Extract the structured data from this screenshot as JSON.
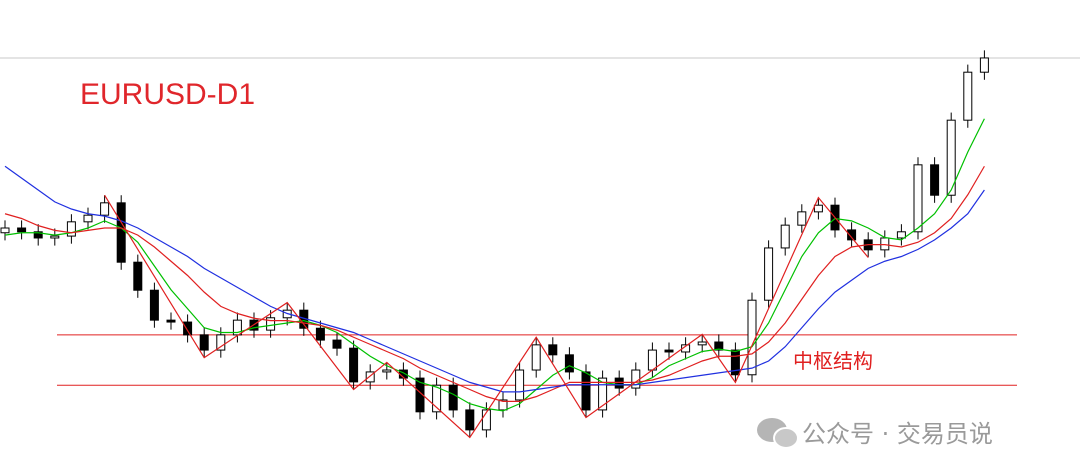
{
  "chart_data": {
    "type": "candlestick",
    "title": "EURUSD-D1",
    "annotation": "中枢结构",
    "watermark": "公众号 · 交易员说",
    "ylim": [
      0,
      100
    ],
    "up_color": "#ffffff",
    "down_color": "#000000",
    "outline_color": "#000000",
    "open": [
      51.0,
      52.0,
      51.2,
      49.9,
      50.3,
      53.3,
      54.7,
      57.3,
      44.8,
      38.9,
      32.6,
      32.2,
      29.5,
      26.3,
      29.5,
      32.6,
      30.5,
      33.1,
      34.7,
      30.9,
      28.4,
      26.7,
      19.6,
      21.7,
      22.1,
      20.4,
      13.3,
      18.9,
      13.7,
      9.5,
      13.7,
      15.8,
      22.1,
      27.4,
      25.3,
      21.7,
      13.7,
      20.4,
      18.3,
      22.1,
      26.3,
      25.9,
      27.4,
      28.0,
      26.3,
      21.1,
      36.8,
      47.8,
      52.6,
      55.4,
      56.8,
      51.6,
      49.5,
      47.4,
      49.9,
      51.2,
      65.3,
      58.9,
      74.7,
      84.8
    ],
    "high": [
      53.6,
      53.6,
      52.8,
      51.9,
      54.9,
      56.3,
      58.9,
      58.9,
      46.4,
      40.5,
      34.2,
      33.8,
      31.1,
      31.1,
      34.2,
      34.2,
      34.7,
      36.3,
      36.3,
      32.5,
      30.0,
      28.3,
      23.3,
      23.7,
      23.7,
      22.0,
      20.5,
      20.5,
      15.3,
      15.3,
      17.4,
      23.7,
      29.0,
      29.0,
      26.9,
      23.3,
      22.0,
      22.0,
      23.7,
      27.9,
      27.9,
      29.0,
      29.6,
      29.6,
      27.9,
      38.4,
      49.4,
      54.2,
      57.0,
      58.4,
      58.4,
      53.2,
      51.1,
      51.5,
      52.8,
      66.9,
      66.9,
      76.3,
      86.4,
      89.4
    ],
    "low": [
      49.4,
      49.6,
      48.3,
      48.3,
      48.7,
      51.7,
      53.1,
      43.2,
      37.3,
      31.0,
      30.6,
      27.9,
      24.7,
      24.7,
      27.9,
      28.9,
      28.9,
      31.5,
      29.3,
      26.8,
      25.1,
      18.0,
      18.0,
      20.1,
      18.8,
      11.7,
      11.7,
      12.1,
      7.9,
      7.9,
      12.1,
      14.2,
      20.5,
      23.7,
      20.1,
      12.1,
      12.1,
      16.7,
      16.7,
      20.5,
      24.3,
      24.3,
      25.8,
      24.7,
      19.5,
      19.5,
      35.2,
      46.2,
      51.0,
      53.8,
      50.0,
      47.9,
      45.8,
      45.8,
      48.3,
      49.6,
      57.3,
      57.3,
      73.1,
      83.2
    ],
    "close": [
      52.0,
      51.2,
      49.9,
      50.3,
      53.3,
      54.7,
      57.3,
      44.8,
      38.9,
      32.6,
      32.2,
      29.5,
      26.3,
      29.5,
      32.6,
      30.5,
      33.1,
      34.7,
      30.9,
      28.4,
      26.7,
      19.6,
      21.7,
      22.1,
      20.4,
      13.3,
      18.9,
      13.7,
      9.5,
      13.7,
      15.8,
      22.1,
      27.4,
      25.3,
      21.7,
      13.7,
      20.4,
      18.3,
      22.1,
      26.3,
      25.9,
      27.4,
      28.0,
      26.3,
      21.1,
      36.8,
      47.8,
      52.6,
      55.4,
      56.8,
      51.6,
      49.5,
      47.4,
      49.9,
      51.2,
      65.3,
      58.9,
      74.7,
      84.8,
      87.8
    ],
    "series": [
      {
        "color": "#00c000",
        "values": [
          50.5,
          51,
          51,
          50.5,
          51,
          52,
          53.5,
          52,
          49,
          44,
          39,
          35,
          31,
          30,
          30,
          31,
          31.5,
          32,
          32.5,
          31.5,
          30,
          27.5,
          25,
          23,
          21.5,
          19.5,
          18.5,
          17,
          15,
          14,
          13.5,
          15,
          18,
          21,
          23,
          21.5,
          19.5,
          19,
          19,
          20.5,
          23,
          24.5,
          26,
          26.5,
          26,
          27,
          32,
          39,
          46,
          51,
          54,
          53.5,
          52,
          50,
          49.5,
          52,
          55,
          60,
          68,
          75
        ]
      },
      {
        "color": "#e02020",
        "values": [
          55,
          54,
          52.5,
          51.5,
          51,
          51.5,
          52,
          52,
          50.5,
          48,
          45,
          42,
          38.5,
          35.5,
          34,
          33,
          32.5,
          32.5,
          32,
          31.5,
          30.5,
          29,
          27.5,
          26,
          24.5,
          22.5,
          21,
          19.5,
          18,
          16.5,
          15.5,
          15.5,
          16.5,
          18,
          19.5,
          19.5,
          19.5,
          19.5,
          19.5,
          20,
          21,
          22.5,
          24,
          25,
          25,
          25.5,
          28,
          32,
          37,
          42,
          46,
          48,
          48.5,
          48.5,
          48,
          49,
          51,
          54,
          59,
          65
        ]
      },
      {
        "color": "#2030e0",
        "values": [
          65,
          62.5,
          60,
          57.5,
          56,
          55,
          54.5,
          53.5,
          52,
          50,
          48,
          46,
          43.5,
          41.5,
          39.5,
          37.5,
          35.5,
          34,
          33,
          32,
          31,
          30,
          28.5,
          27,
          25.5,
          24,
          22.5,
          21,
          19.5,
          18.5,
          17.5,
          17.5,
          18,
          18.5,
          19,
          19,
          19,
          19,
          19,
          19.5,
          20,
          20.5,
          21,
          21.5,
          22,
          22.5,
          24,
          27,
          31,
          35,
          38.5,
          41,
          43.5,
          45,
          46,
          47.5,
          49.5,
          52,
          55,
          60
        ]
      }
    ],
    "zigzag": {
      "color": "#e02020",
      "x": [
        6,
        12,
        17,
        21,
        23,
        28,
        32,
        35,
        42,
        44,
        49,
        52
      ],
      "values": [
        58.9,
        24.7,
        36.3,
        18.0,
        23.7,
        7.9,
        29.0,
        12.1,
        29.6,
        19.5,
        58.4,
        45.8
      ]
    },
    "levels": {
      "color": "#e02020",
      "values": [
        29.5,
        18.9
      ]
    },
    "price_line": {
      "color": "#c8c8c8",
      "value": 87.8
    }
  }
}
